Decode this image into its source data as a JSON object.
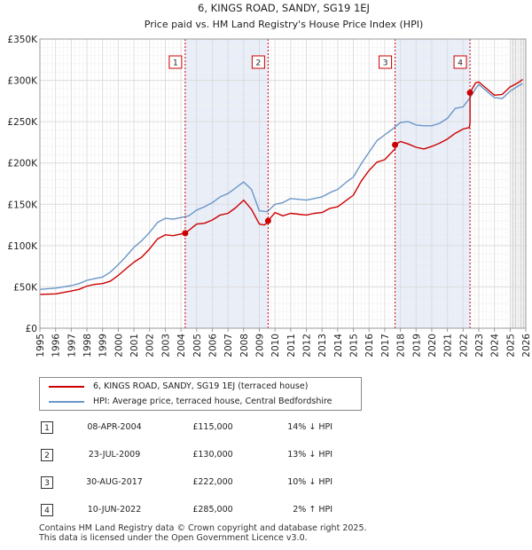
{
  "chart_data": {
    "type": "line",
    "title": "6, KINGS ROAD, SANDY, SG19 1EJ",
    "subtitle": "Price paid vs. HM Land Registry's House Price Index (HPI)",
    "xlabel": "",
    "ylabel": "",
    "xlim": [
      1995,
      2026
    ],
    "ylim": [
      0,
      350000
    ],
    "x_ticks": [
      1995,
      1996,
      1997,
      1998,
      1999,
      2000,
      2001,
      2002,
      2003,
      2004,
      2005,
      2006,
      2007,
      2008,
      2009,
      2010,
      2011,
      2012,
      2013,
      2014,
      2015,
      2016,
      2017,
      2018,
      2019,
      2020,
      2021,
      2022,
      2023,
      2024,
      2025,
      2026
    ],
    "y_ticks": [
      {
        "value": 0,
        "label": "£0"
      },
      {
        "value": 50000,
        "label": "£50K"
      },
      {
        "value": 100000,
        "label": "£100K"
      },
      {
        "value": 150000,
        "label": "£150K"
      },
      {
        "value": 200000,
        "label": "£200K"
      },
      {
        "value": 250000,
        "label": "£250K"
      },
      {
        "value": 300000,
        "label": "£300K"
      },
      {
        "value": 350000,
        "label": "£350K"
      }
    ],
    "grid": true,
    "shaded_periods": [
      [
        2004.27,
        2009.56
      ],
      [
        2017.66,
        2022.44
      ]
    ],
    "forecast_start": 2025.0,
    "series": [
      {
        "name": "6, KINGS ROAD, SANDY, SG19 1EJ (terraced house)",
        "color": "#cc0000",
        "x": [
          1995.0,
          1996.0,
          1997.0,
          1997.5,
          1998.0,
          1998.5,
          1999.0,
          1999.5,
          2000.0,
          2000.5,
          2001.0,
          2001.5,
          2002.0,
          2002.5,
          2003.0,
          2003.5,
          2004.0,
          2004.27,
          2004.27,
          2005.0,
          2005.5,
          2006.0,
          2006.5,
          2007.0,
          2007.5,
          2008.0,
          2008.5,
          2009.0,
          2009.3,
          2009.56,
          2009.56,
          2010.0,
          2010.5,
          2011.0,
          2011.5,
          2012.0,
          2012.5,
          2013.0,
          2013.5,
          2014.0,
          2014.5,
          2015.0,
          2015.5,
          2016.0,
          2016.5,
          2017.0,
          2017.5,
          2017.66,
          2017.66,
          2018.0,
          2018.5,
          2019.0,
          2019.5,
          2020.0,
          2020.5,
          2021.0,
          2021.5,
          2022.0,
          2022.4,
          2022.44,
          2022.44,
          2022.8,
          2023.0,
          2023.5,
          2024.0,
          2024.5,
          2025.0,
          2025.5,
          2025.8
        ],
        "values": [
          41000,
          41500,
          45000,
          47000,
          51000,
          53000,
          54000,
          57000,
          64000,
          72000,
          80000,
          86000,
          96000,
          108000,
          113000,
          112000,
          114000,
          115000,
          115000,
          126000,
          127000,
          131000,
          137000,
          139000,
          146000,
          155000,
          144000,
          126000,
          125000,
          128000,
          130000,
          140000,
          136000,
          139000,
          138000,
          137000,
          139000,
          140000,
          145000,
          147000,
          154000,
          161000,
          178000,
          191000,
          201000,
          204000,
          214000,
          217000,
          222000,
          226000,
          223000,
          219000,
          217000,
          220000,
          224000,
          229000,
          236000,
          241000,
          243000,
          249000,
          285000,
          297000,
          298000,
          290000,
          282000,
          283000,
          292000,
          297000,
          301000
        ]
      },
      {
        "name": "HPI: Average price, terraced house, Central Bedfordshire",
        "color": "#6a96c8",
        "x": [
          1995.0,
          1996.0,
          1997.0,
          1997.5,
          1998.0,
          1998.5,
          1999.0,
          1999.5,
          2000.0,
          2000.5,
          2001.0,
          2001.5,
          2002.0,
          2002.5,
          2003.0,
          2003.5,
          2004.0,
          2004.5,
          2005.0,
          2005.5,
          2006.0,
          2006.5,
          2007.0,
          2007.5,
          2008.0,
          2008.5,
          2009.0,
          2009.5,
          2010.0,
          2010.5,
          2011.0,
          2011.5,
          2012.0,
          2012.5,
          2013.0,
          2013.5,
          2014.0,
          2014.5,
          2015.0,
          2015.5,
          2016.0,
          2016.5,
          2017.0,
          2017.5,
          2018.0,
          2018.5,
          2019.0,
          2019.5,
          2020.0,
          2020.5,
          2021.0,
          2021.5,
          2022.0,
          2022.4,
          2022.8,
          2023.0,
          2023.5,
          2024.0,
          2024.5,
          2025.0,
          2025.5,
          2025.8
        ],
        "values": [
          47000,
          48500,
          51500,
          54000,
          58000,
          60000,
          62000,
          68000,
          77000,
          87000,
          98000,
          106000,
          116000,
          128000,
          133000,
          132000,
          134000,
          136000,
          143000,
          147000,
          152000,
          159000,
          163000,
          170000,
          177000,
          168000,
          142000,
          141000,
          150000,
          152000,
          157000,
          156000,
          155000,
          157000,
          159000,
          164000,
          168000,
          176000,
          183000,
          199000,
          213000,
          227000,
          234000,
          241000,
          249000,
          250000,
          246000,
          245000,
          245000,
          248000,
          254000,
          266000,
          268000,
          278000,
          290000,
          295000,
          287000,
          279000,
          278000,
          287000,
          293000,
          296000
        ]
      }
    ],
    "markers": [
      {
        "label": "1",
        "x": 2004.27,
        "y": 115000
      },
      {
        "label": "2",
        "x": 2009.56,
        "y": 130000
      },
      {
        "label": "3",
        "x": 2017.66,
        "y": 222000
      },
      {
        "label": "4",
        "x": 2022.44,
        "y": 285000
      }
    ]
  },
  "legend": {
    "property_label": "6, KINGS ROAD, SANDY, SG19 1EJ (terraced house)",
    "hpi_label": "HPI: Average price, terraced house, Central Bedfordshire"
  },
  "sales": [
    {
      "num": "1",
      "date": "08-APR-2004",
      "price": "£115,000",
      "hpi": "14% ↓ HPI"
    },
    {
      "num": "2",
      "date": "23-JUL-2009",
      "price": "£130,000",
      "hpi": "13% ↓ HPI"
    },
    {
      "num": "3",
      "date": "30-AUG-2017",
      "price": "£222,000",
      "hpi": "10% ↓ HPI"
    },
    {
      "num": "4",
      "date": "10-JUN-2022",
      "price": "£285,000",
      "hpi": "2% ↑ HPI"
    }
  ],
  "footer": {
    "line1": "Contains HM Land Registry data © Crown copyright and database right 2025.",
    "line2": "This data is licensed under the Open Government Licence v3.0."
  }
}
